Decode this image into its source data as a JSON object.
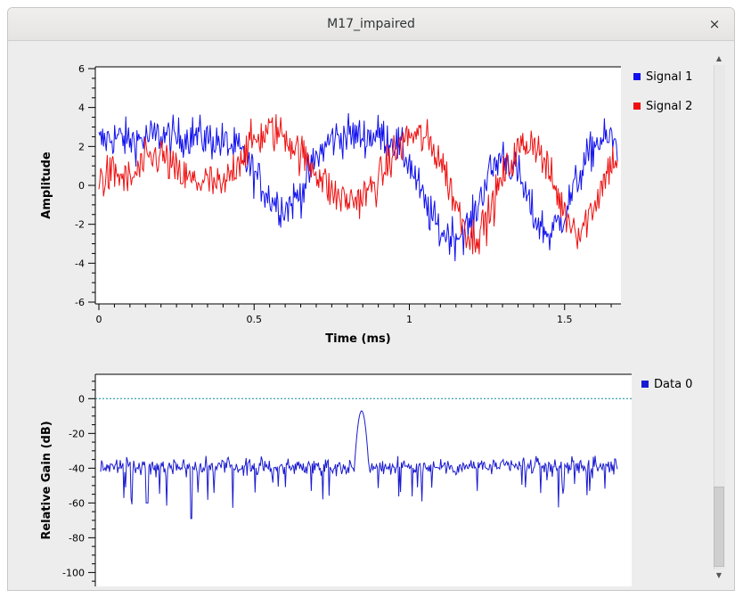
{
  "window": {
    "title": "M17_impaired",
    "close_glyph": "×",
    "close_icon": "close-icon"
  },
  "scrollbar": {
    "up_glyph": "▲",
    "down_glyph": "▼",
    "position": 0.92
  },
  "colors": {
    "signal1": "#1010ee",
    "signal2": "#ee1010",
    "data0": "#1a1ad0",
    "ref_line": "#0a8a9a"
  },
  "chart_data": [
    {
      "type": "line",
      "xlabel": "Time (ms)",
      "ylabel": "Amplitude",
      "xlim": [
        0,
        1.67
      ],
      "ylim": [
        -6,
        6
      ],
      "x_ticks": [
        0,
        0.5,
        1,
        1.5
      ],
      "x_tick_labels": [
        "0",
        "0.5",
        "1",
        "1.5"
      ],
      "y_ticks": [
        -6,
        -4,
        -2,
        0,
        2,
        4,
        6
      ],
      "y_tick_labels": [
        "-6",
        "-4",
        "-2",
        "0",
        "2",
        "4",
        "6"
      ],
      "legend": "right",
      "series": [
        {
          "name": "Signal 1",
          "x": [
            0,
            0.05,
            0.1,
            0.15,
            0.2,
            0.25,
            0.3,
            0.35,
            0.4,
            0.45,
            0.5,
            0.55,
            0.6,
            0.65,
            0.7,
            0.75,
            0.8,
            0.85,
            0.9,
            0.95,
            1.0,
            1.05,
            1.1,
            1.15,
            1.2,
            1.25,
            1.3,
            1.35,
            1.4,
            1.45,
            1.5,
            1.55,
            1.6,
            1.65,
            1.67
          ],
          "y": [
            2.2,
            2.5,
            2.3,
            2.4,
            2.6,
            2.4,
            2.6,
            2.4,
            2.2,
            1.8,
            0.6,
            -0.6,
            -1.2,
            -0.4,
            1.4,
            2.4,
            2.6,
            2.5,
            2.6,
            2.3,
            1.2,
            -1.0,
            -2.4,
            -2.6,
            -2.0,
            0.4,
            1.6,
            0.6,
            -1.6,
            -2.6,
            -1.4,
            0.6,
            2.2,
            2.4,
            2.0
          ]
        },
        {
          "name": "Signal 2",
          "x": [
            0,
            0.05,
            0.1,
            0.15,
            0.2,
            0.25,
            0.3,
            0.35,
            0.4,
            0.45,
            0.5,
            0.55,
            0.6,
            0.65,
            0.7,
            0.75,
            0.8,
            0.85,
            0.9,
            0.95,
            1.0,
            1.05,
            1.1,
            1.15,
            1.2,
            1.25,
            1.3,
            1.35,
            1.4,
            1.45,
            1.5,
            1.55,
            1.6,
            1.65,
            1.67
          ],
          "y": [
            0.3,
            0.6,
            0.2,
            1.2,
            1.6,
            0.6,
            0.2,
            0.2,
            -0.2,
            1.4,
            2.3,
            2.8,
            2.6,
            1.6,
            0.8,
            -0.4,
            -0.8,
            -0.6,
            0.2,
            1.6,
            2.6,
            2.4,
            1.4,
            -1.0,
            -2.8,
            -1.8,
            0.4,
            1.8,
            2.4,
            0.6,
            -1.4,
            -2.4,
            -0.8,
            1.2,
            1.4
          ]
        }
      ]
    },
    {
      "type": "line",
      "xlabel": "",
      "ylabel": "Relative Gain (dB)",
      "ylim": [
        -108,
        14
      ],
      "y_ticks": [
        0,
        -20,
        -40,
        -60,
        -80,
        -100
      ],
      "y_tick_labels": [
        "0",
        "-20",
        "-40",
        "-60",
        "-80",
        "-100"
      ],
      "legend": "right",
      "series": [
        {
          "name": "Data 0",
          "noise_floor_db": -39,
          "spur_min_db": -69,
          "peak_bin_fraction": 0.505,
          "peak_db": -7
        }
      ],
      "reference_db": 0
    }
  ]
}
